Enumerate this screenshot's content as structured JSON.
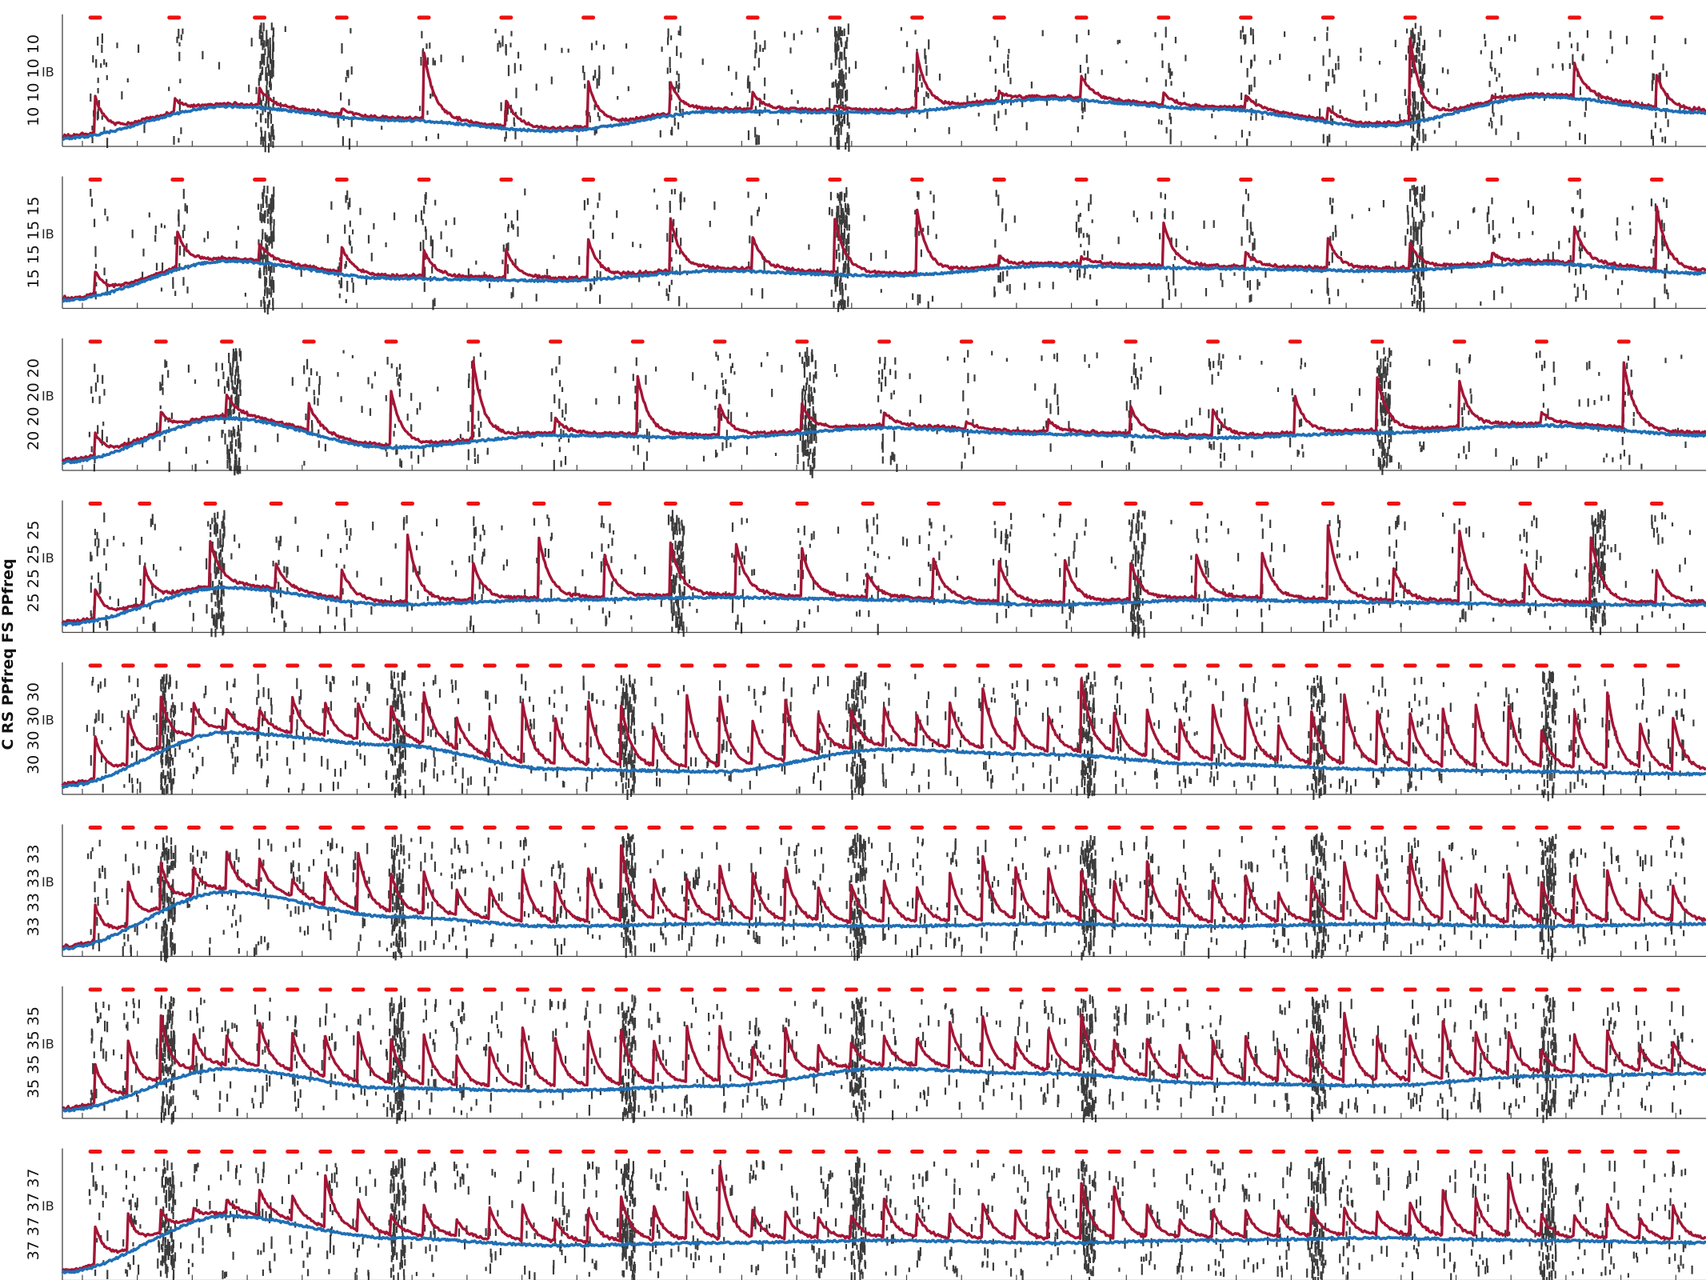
{
  "chart_data": {
    "type": "line",
    "figure_ylabel": "C RS PPfreq FS PPfreq",
    "time_range": [
      0,
      1
    ],
    "colors": {
      "raster": "#1a1a1a",
      "pulse_markers": "#ee1111",
      "series_red": "#a31535",
      "series_blue": "#1f6fb5",
      "axes": "#444444"
    },
    "panels": [
      {
        "label": "10",
        "inner_label": "IB",
        "pulses": [
          0.02,
          0.068,
          0.12,
          0.17,
          0.22,
          0.27,
          0.32,
          0.37,
          0.42,
          0.47,
          0.52,
          0.57,
          0.62,
          0.67,
          0.72,
          0.77,
          0.82,
          0.87,
          0.92,
          0.97
        ],
        "blue_baseline": [
          0.04,
          0.3,
          0.19,
          0.1,
          0.26,
          0.25,
          0.36,
          0.28,
          0.14,
          0.38,
          0.25
        ],
        "peaks": [
          0.6,
          0.4,
          0.45,
          0.3,
          0.9,
          0.35,
          0.7,
          0.55,
          0.4,
          0.3,
          0.8,
          0.45
        ]
      },
      {
        "label": "15",
        "inner_label": "IB",
        "pulses": [
          0.02,
          0.07,
          0.12,
          0.17,
          0.22,
          0.27,
          0.32,
          0.37,
          0.42,
          0.47,
          0.52,
          0.57,
          0.62,
          0.67,
          0.72,
          0.77,
          0.82,
          0.87,
          0.92,
          0.97
        ],
        "blue_baseline": [
          0.04,
          0.36,
          0.22,
          0.2,
          0.28,
          0.24,
          0.32,
          0.3,
          0.28,
          0.34,
          0.26
        ],
        "peaks": [
          0.4,
          0.7,
          0.5,
          0.6,
          0.5,
          0.45,
          0.7,
          0.8,
          0.55,
          0.9,
          0.85,
          0.45
        ]
      },
      {
        "label": "20",
        "inner_label": "IB",
        "pulses": [
          0.02,
          0.06,
          0.1,
          0.15,
          0.2,
          0.25,
          0.3,
          0.35,
          0.4,
          0.45,
          0.5,
          0.55,
          0.6,
          0.65,
          0.7,
          0.75,
          0.8,
          0.85,
          0.9,
          0.95
        ],
        "blue_baseline": [
          0.04,
          0.4,
          0.16,
          0.26,
          0.24,
          0.32,
          0.27,
          0.24,
          0.28,
          0.34,
          0.26
        ],
        "peaks": [
          0.4,
          0.5,
          0.6,
          0.65,
          0.75,
          0.9,
          0.45,
          0.85,
          0.5,
          0.6,
          0.45,
          0.4
        ]
      },
      {
        "label": "25",
        "inner_label": "IB",
        "pulses": [
          0.02,
          0.05,
          0.09,
          0.13,
          0.17,
          0.21,
          0.25,
          0.29,
          0.33,
          0.37,
          0.41,
          0.45,
          0.49,
          0.53,
          0.57,
          0.61,
          0.65,
          0.69,
          0.73,
          0.77,
          0.81,
          0.85,
          0.89,
          0.93,
          0.97
        ],
        "blue_baseline": [
          0.04,
          0.34,
          0.2,
          0.24,
          0.26,
          0.24,
          0.2,
          0.24,
          0.22,
          0.2,
          0.2
        ],
        "peaks": [
          0.5,
          0.6,
          0.75,
          0.65,
          0.55,
          0.8,
          0.7,
          0.85,
          0.6,
          0.9,
          0.75,
          0.95
        ]
      },
      {
        "label": "30",
        "inner_label": "IB",
        "pulses": [
          0.02,
          0.04,
          0.06,
          0.08,
          0.1,
          0.12,
          0.14,
          0.16,
          0.18,
          0.2,
          0.22,
          0.24,
          0.26,
          0.28,
          0.3,
          0.32,
          0.34,
          0.36,
          0.38,
          0.4,
          0.42,
          0.44,
          0.46,
          0.48,
          0.5,
          0.52,
          0.54,
          0.56,
          0.58,
          0.6,
          0.62,
          0.64,
          0.66,
          0.68,
          0.7,
          0.72,
          0.74,
          0.76,
          0.78,
          0.8,
          0.82,
          0.84,
          0.86,
          0.88,
          0.9,
          0.92,
          0.94,
          0.96,
          0.98
        ],
        "blue_baseline": [
          0.04,
          0.48,
          0.38,
          0.18,
          0.16,
          0.34,
          0.3,
          0.22,
          0.18,
          0.16,
          0.14
        ],
        "peaks": [
          0.7,
          0.75,
          0.8,
          0.85,
          0.7,
          0.65,
          0.9,
          0.75,
          0.7,
          0.8,
          0.85,
          0.75
        ]
      },
      {
        "label": "33",
        "inner_label": "IB",
        "pulses": [
          0.02,
          0.04,
          0.06,
          0.08,
          0.1,
          0.12,
          0.14,
          0.16,
          0.18,
          0.2,
          0.22,
          0.24,
          0.26,
          0.28,
          0.3,
          0.32,
          0.34,
          0.36,
          0.38,
          0.4,
          0.42,
          0.44,
          0.46,
          0.48,
          0.5,
          0.52,
          0.54,
          0.56,
          0.58,
          0.6,
          0.62,
          0.64,
          0.66,
          0.68,
          0.7,
          0.72,
          0.74,
          0.76,
          0.78,
          0.8,
          0.82,
          0.84,
          0.86,
          0.88,
          0.9,
          0.92,
          0.94,
          0.96,
          0.98
        ],
        "blue_baseline": [
          0.04,
          0.5,
          0.3,
          0.22,
          0.24,
          0.22,
          0.24,
          0.22,
          0.24,
          0.22,
          0.24
        ],
        "peaks": [
          0.6,
          0.7,
          0.75,
          0.8,
          0.9,
          0.75,
          0.65,
          0.7,
          0.8,
          0.75,
          0.7,
          0.65
        ]
      },
      {
        "label": "35",
        "inner_label": "IB",
        "pulses": [
          0.02,
          0.04,
          0.06,
          0.08,
          0.1,
          0.12,
          0.14,
          0.16,
          0.18,
          0.2,
          0.22,
          0.24,
          0.26,
          0.28,
          0.3,
          0.32,
          0.34,
          0.36,
          0.38,
          0.4,
          0.42,
          0.44,
          0.46,
          0.48,
          0.5,
          0.52,
          0.54,
          0.56,
          0.58,
          0.6,
          0.62,
          0.64,
          0.66,
          0.68,
          0.7,
          0.72,
          0.74,
          0.76,
          0.78,
          0.8,
          0.82,
          0.84,
          0.86,
          0.88,
          0.9,
          0.92,
          0.94,
          0.96,
          0.98
        ],
        "blue_baseline": [
          0.04,
          0.38,
          0.22,
          0.2,
          0.24,
          0.38,
          0.34,
          0.26,
          0.24,
          0.32,
          0.34
        ],
        "peaks": [
          0.65,
          0.75,
          0.85,
          0.8,
          0.7,
          0.75,
          0.8,
          0.7,
          0.65,
          0.75,
          0.7,
          0.65
        ]
      },
      {
        "label": "37",
        "inner_label": "IB",
        "pulses": [
          0.02,
          0.04,
          0.06,
          0.08,
          0.1,
          0.12,
          0.14,
          0.16,
          0.18,
          0.2,
          0.22,
          0.24,
          0.26,
          0.28,
          0.3,
          0.32,
          0.34,
          0.36,
          0.38,
          0.4,
          0.42,
          0.44,
          0.46,
          0.48,
          0.5,
          0.52,
          0.54,
          0.56,
          0.58,
          0.6,
          0.62,
          0.64,
          0.66,
          0.68,
          0.7,
          0.72,
          0.74,
          0.76,
          0.78,
          0.8,
          0.82,
          0.84,
          0.86,
          0.88,
          0.9,
          0.92,
          0.94,
          0.96,
          0.98
        ],
        "blue_baseline": [
          0.04,
          0.5,
          0.32,
          0.26,
          0.28,
          0.3,
          0.28,
          0.3,
          0.32,
          0.3,
          0.28
        ],
        "peaks": [
          0.65,
          0.6,
          0.55,
          0.6,
          0.65,
          0.7,
          0.75,
          0.9,
          0.6,
          0.55,
          0.6,
          0.55
        ]
      }
    ]
  }
}
